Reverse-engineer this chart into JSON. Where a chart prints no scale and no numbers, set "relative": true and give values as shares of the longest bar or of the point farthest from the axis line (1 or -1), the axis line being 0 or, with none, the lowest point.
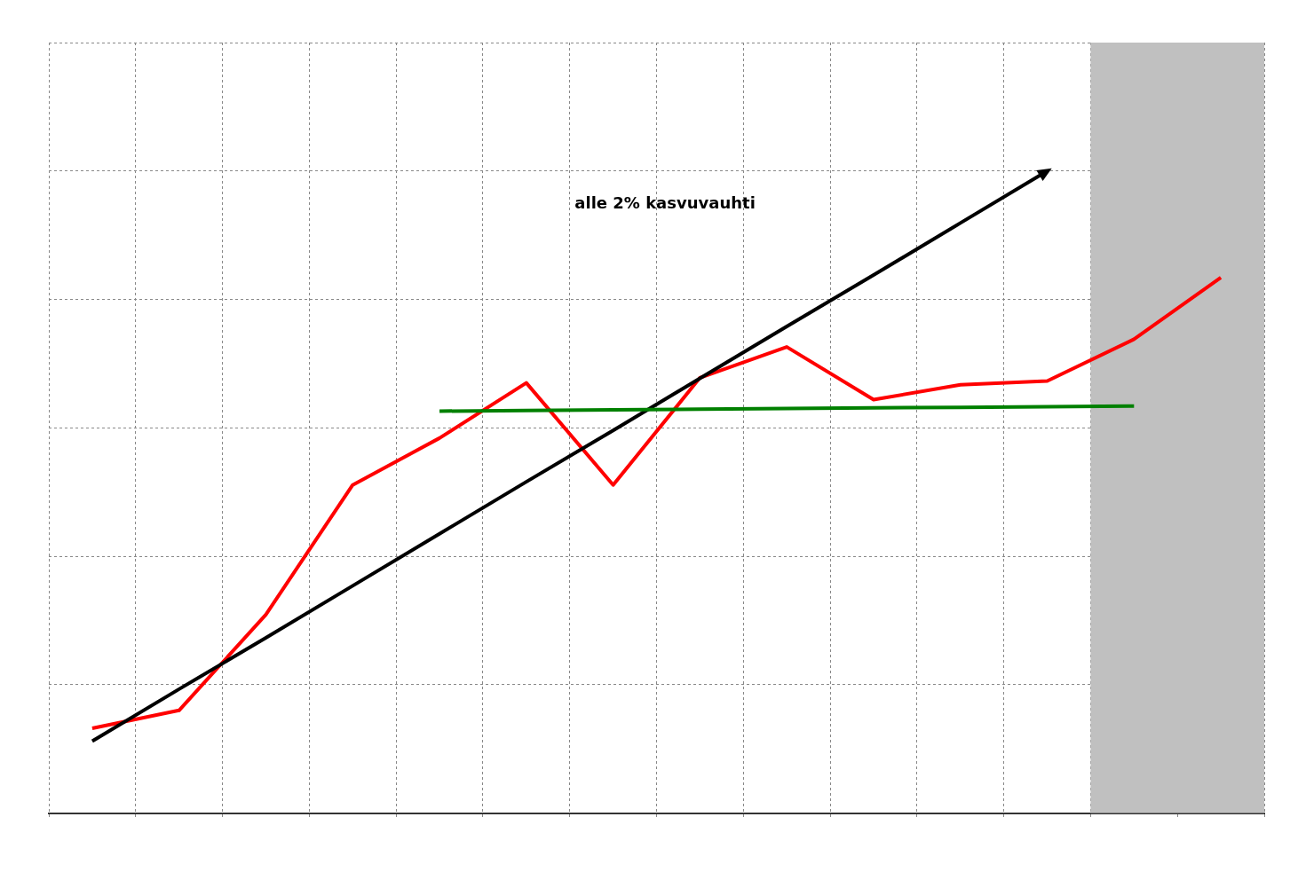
{
  "chart_data": {
    "type": "line",
    "relative": true,
    "grid": true,
    "legend": false,
    "marker": "none",
    "categories": [
      null,
      null,
      null,
      null,
      null,
      null,
      null,
      null,
      null,
      null,
      null,
      null,
      null,
      null
    ],
    "series": [
      {
        "color": "#ff0000",
        "values": [
          0.132,
          0.16,
          0.309,
          0.511,
          0.584,
          0.67,
          0.511,
          0.678,
          0.726,
          0.644,
          0.667,
          0.673,
          0.738,
          0.834
        ]
      },
      {
        "type": "line",
        "color": "#000000",
        "values": [
          0.112,
          0.193,
          0.273,
          0.354,
          0.435,
          0.516,
          0.596,
          0.677,
          0.758,
          0.838,
          0.919,
          1,
          null,
          null
        ]
      },
      {
        "type": "line",
        "color": "#008000",
        "values": [
          null,
          null,
          null,
          null,
          0.626,
          0.627,
          0.628,
          0.629,
          0.63,
          0.631,
          0.632,
          0.633,
          0.634,
          null
        ]
      }
    ],
    "annotations": [
      "alle 2% kasvuvauhti"
    ]
  }
}
